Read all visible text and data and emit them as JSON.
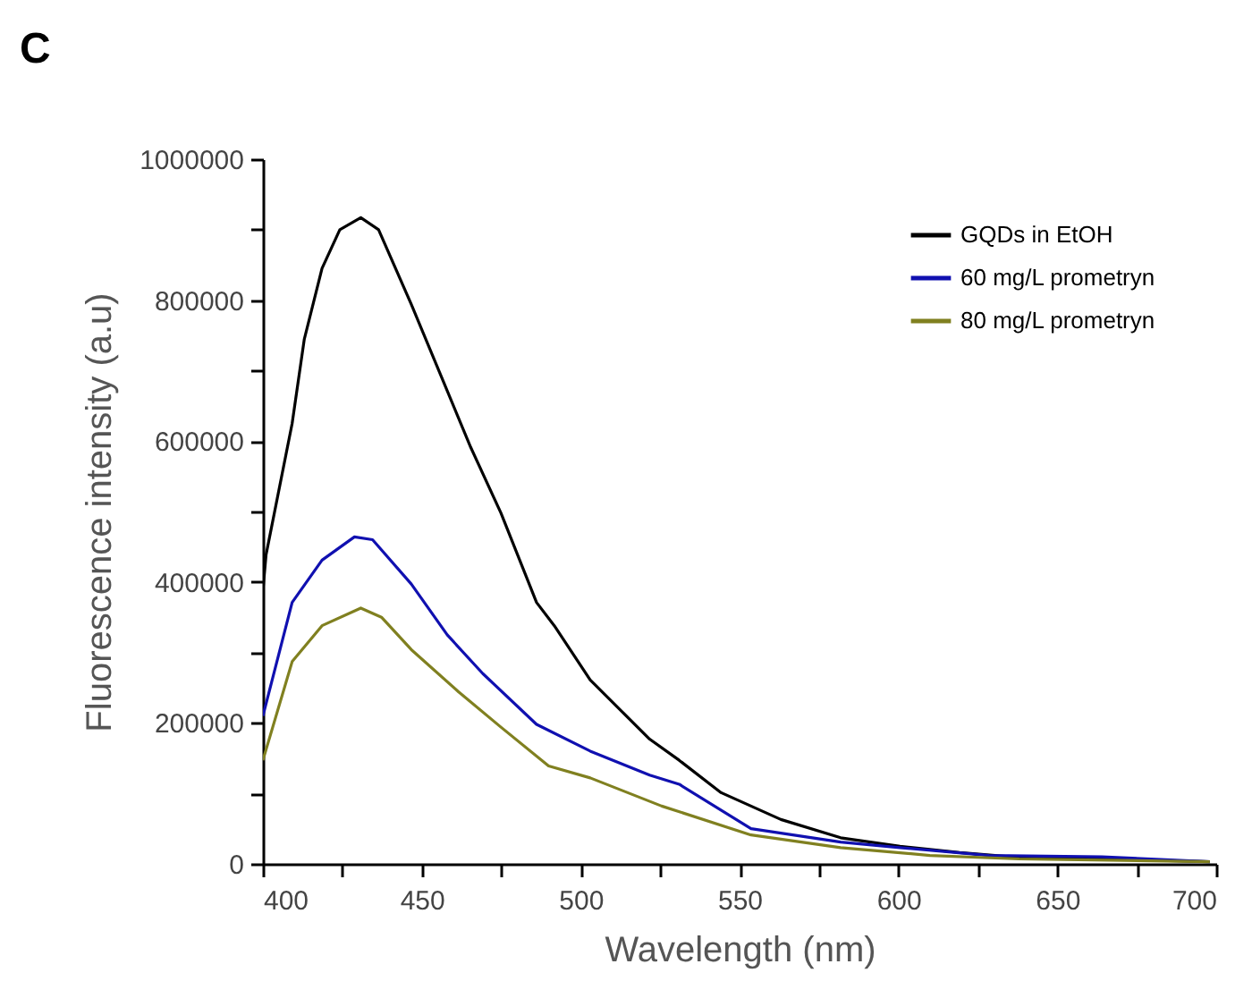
{
  "chart_data": {
    "type": "line",
    "title": "C",
    "xlabel": "Wavelength (nm)",
    "ylabel": "Fluorescence intensity (a.u)",
    "xlim": [
      400,
      700
    ],
    "ylim": [
      0,
      1000000
    ],
    "xticks": [
      400,
      {
        "value": 425,
        "label": null
      },
      450,
      {
        "value": 475,
        "label": null
      },
      500,
      {
        "value": 525,
        "label": null
      },
      550,
      {
        "value": 575,
        "label": null
      },
      600,
      {
        "value": 625,
        "label": null
      },
      650,
      {
        "value": 675,
        "label": null
      },
      700
    ],
    "yticks": [
      0,
      {
        "value": 100000,
        "label": null
      },
      200000,
      {
        "value": 300000,
        "label": null
      },
      400000,
      {
        "value": 500000,
        "label": null
      },
      600000,
      {
        "value": 700000,
        "label": null
      },
      800000,
      {
        "value": 900000,
        "label": null
      },
      1000000
    ],
    "grid": false,
    "legend": "top right",
    "marker": "none",
    "line_style": "solid",
    "series": [
      {
        "name": "GQDs in EtOH",
        "color": "#000000",
        "x": [
          400,
          401,
          409.2,
          413,
          418.6,
          424.2,
          430.8,
          436.4,
          446.7,
          456,
          465.4,
          474.9,
          486.1,
          491.7,
          503,
          521.7,
          531,
          544.2,
          563,
          581.8,
          600.5,
          619.3,
          638,
          666,
          698
        ],
        "values": [
          388000,
          439000,
          625000,
          744000,
          845000,
          900000,
          917000,
          900000,
          794000,
          693000,
          591000,
          498000,
          371000,
          338000,
          261000,
          177000,
          147000,
          101000,
          63000,
          37000,
          25000,
          16000,
          9000,
          7000,
          3000
        ]
      },
      {
        "name": "60 mg/L  prometryn",
        "color": "#1010b0",
        "x": [
          400,
          409.2,
          418.6,
          428.8,
          434.5,
          446.7,
          458,
          469.2,
          486.1,
          503,
          521.7,
          531,
          553.6,
          581.8,
          600.5,
          628.5,
          664,
          698
        ],
        "values": [
          210000,
          371000,
          431000,
          464000,
          460000,
          397000,
          325000,
          270000,
          198000,
          160000,
          126000,
          113000,
          50000,
          31000,
          23000,
          12000,
          10000,
          3000
        ]
      },
      {
        "name": "80 mg/L  prometryn",
        "color": "#808020",
        "x": [
          400,
          409.2,
          418.6,
          430.8,
          437.3,
          446.7,
          461.6,
          474.9,
          489.9,
          503,
          525.5,
          553.6,
          581.8,
          609.9,
          638,
          698
        ],
        "values": [
          147000,
          287000,
          338000,
          363000,
          350000,
          304000,
          244000,
          194000,
          139000,
          122000,
          82000,
          41000,
          23000,
          12000,
          7000,
          3000
        ]
      }
    ]
  }
}
